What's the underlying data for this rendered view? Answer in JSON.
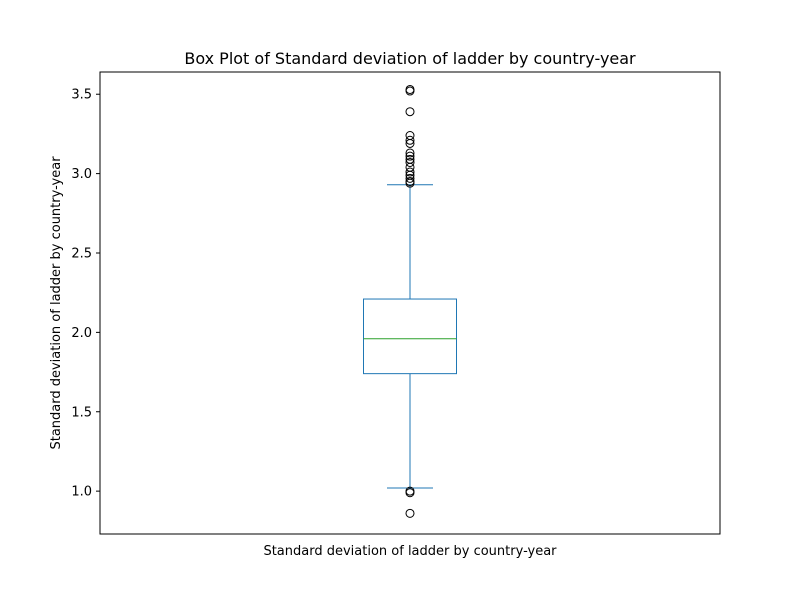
{
  "chart_data": {
    "type": "box",
    "title": "Box Plot of Standard deviation of ladder by country-year",
    "xlabel": "Standard deviation of ladder by country-year",
    "ylabel": "Standard deviation of ladder by country-year",
    "xtick_labels": [],
    "ylim": [
      0.73,
      3.64
    ],
    "yticks": [
      1.0,
      1.5,
      2.0,
      2.5,
      3.0,
      3.5
    ],
    "ytick_labels": [
      "1.0",
      "1.5",
      "2.0",
      "2.5",
      "3.0",
      "3.5"
    ],
    "grid": false,
    "series": [
      {
        "whisker_low": 1.02,
        "q1": 1.74,
        "median": 1.96,
        "q3": 2.21,
        "whisker_high": 2.93,
        "outliers": [
          0.86,
          0.99,
          1.0,
          2.94,
          2.95,
          2.97,
          2.99,
          3.01,
          3.04,
          3.07,
          3.09,
          3.11,
          3.13,
          3.19,
          3.21,
          3.24,
          3.39,
          3.52,
          3.53
        ]
      }
    ],
    "colors": {
      "box": "#1f77b4",
      "median": "#2ca02c",
      "outlier": "#000000",
      "frame": "#000000"
    }
  }
}
